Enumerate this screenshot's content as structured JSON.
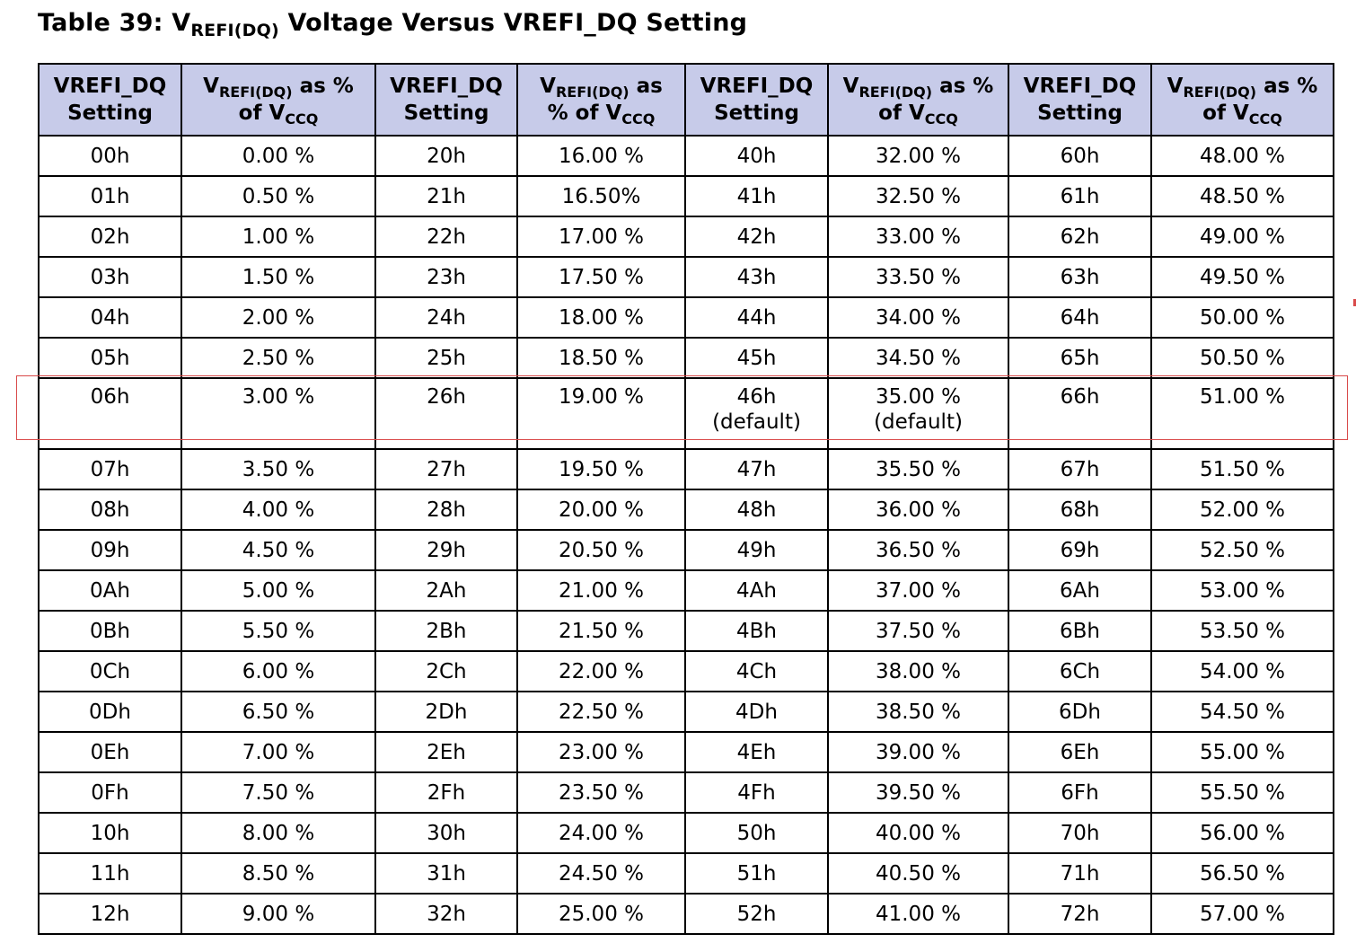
{
  "title": {
    "prefix": "Table 39: V",
    "sub": "REFI(DQ)",
    "suffix": " Voltage Versus VREFI_DQ Setting"
  },
  "headers": {
    "setting_line1": "VREFI_DQ",
    "setting_line2": "Setting",
    "pct_v": "V",
    "pct_sub": "REFI(DQ)",
    "pct_as": " as %",
    "pct_as_short": " as",
    "pct_of": "of V",
    "pct_of_long": "% of V",
    "pct_ccq": "CCQ"
  },
  "rows": [
    [
      "00h",
      "0.00 %",
      "20h",
      "16.00 %",
      "40h",
      "32.00 %",
      "60h",
      "48.00 %"
    ],
    [
      "01h",
      "0.50 %",
      "21h",
      "16.50%",
      "41h",
      "32.50 %",
      "61h",
      "48.50 %"
    ],
    [
      "02h",
      "1.00 %",
      "22h",
      "17.00 %",
      "42h",
      "33.00 %",
      "62h",
      "49.00 %"
    ],
    [
      "03h",
      "1.50 %",
      "23h",
      "17.50 %",
      "43h",
      "33.50 %",
      "63h",
      "49.50 %"
    ],
    [
      "04h",
      "2.00 %",
      "24h",
      "18.00 %",
      "44h",
      "34.00 %",
      "64h",
      "50.00 %"
    ],
    [
      "05h",
      "2.50 %",
      "25h",
      "18.50 %",
      "45h",
      "34.50 %",
      "65h",
      "50.50 %"
    ],
    [
      "06h",
      "3.00 %",
      "26h",
      "19.00 %",
      "46h",
      "35.00 %",
      "66h",
      "51.00 %"
    ],
    [
      "07h",
      "3.50 %",
      "27h",
      "19.50 %",
      "47h",
      "35.50 %",
      "67h",
      "51.50 %"
    ],
    [
      "08h",
      "4.00 %",
      "28h",
      "20.00 %",
      "48h",
      "36.00 %",
      "68h",
      "52.00 %"
    ],
    [
      "09h",
      "4.50 %",
      "29h",
      "20.50 %",
      "49h",
      "36.50 %",
      "69h",
      "52.50 %"
    ],
    [
      "0Ah",
      "5.00 %",
      "2Ah",
      "21.00 %",
      "4Ah",
      "37.00 %",
      "6Ah",
      "53.00 %"
    ],
    [
      "0Bh",
      "5.50 %",
      "2Bh",
      "21.50 %",
      "4Bh",
      "37.50 %",
      "6Bh",
      "53.50 %"
    ],
    [
      "0Ch",
      "6.00 %",
      "2Ch",
      "22.00 %",
      "4Ch",
      "38.00 %",
      "6Ch",
      "54.00 %"
    ],
    [
      "0Dh",
      "6.50 %",
      "2Dh",
      "22.50 %",
      "4Dh",
      "38.50 %",
      "6Dh",
      "54.50 %"
    ],
    [
      "0Eh",
      "7.00 %",
      "2Eh",
      "23.00 %",
      "4Eh",
      "39.00 %",
      "6Eh",
      "55.00 %"
    ],
    [
      "0Fh",
      "7.50 %",
      "2Fh",
      "23.50 %",
      "4Fh",
      "39.50 %",
      "6Fh",
      "55.50 %"
    ],
    [
      "10h",
      "8.00 %",
      "30h",
      "24.00 %",
      "50h",
      "40.00 %",
      "70h",
      "56.00 %"
    ],
    [
      "11h",
      "8.50 %",
      "31h",
      "24.50 %",
      "51h",
      "40.50 %",
      "71h",
      "56.50 %"
    ],
    [
      "12h",
      "9.00 %",
      "32h",
      "25.00 %",
      "52h",
      "41.00 %",
      "72h",
      "57.00 %"
    ]
  ],
  "default_note": "(default)",
  "colors": {
    "header_bg": "#c7cbe9",
    "highlight": "#d94a4a"
  }
}
